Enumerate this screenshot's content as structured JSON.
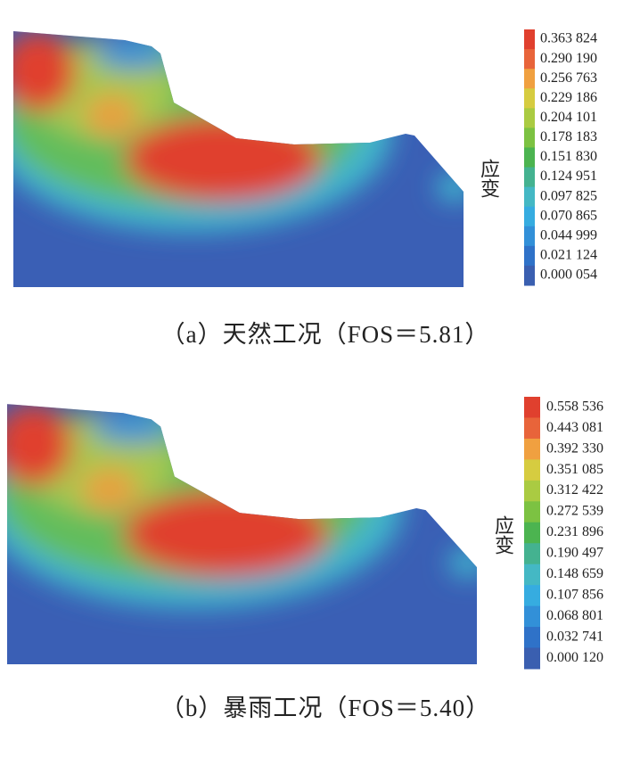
{
  "panels": [
    {
      "caption": "（a）天然工况（FOS＝5.81）",
      "legend_title": "应变",
      "legend_labels": [
        "0.363 824",
        "0.290 190",
        "0.256 763",
        "0.229 186",
        "0.204 101",
        "0.178 183",
        "0.151 830",
        "0.124 951",
        "0.097 825",
        "0.070 865",
        "0.044 999",
        "0.021 124",
        "0.000 054"
      ]
    },
    {
      "caption": "（b）暴雨工况（FOS＝5.40）",
      "legend_title": "应变",
      "legend_labels": [
        "0.558 536",
        "0.443 081",
        "0.392 330",
        "0.351 085",
        "0.312 422",
        "0.272 539",
        "0.231 896",
        "0.190 497",
        "0.148 659",
        "0.107 856",
        "0.068 801",
        "0.032 741",
        "0.000 120"
      ]
    }
  ]
}
